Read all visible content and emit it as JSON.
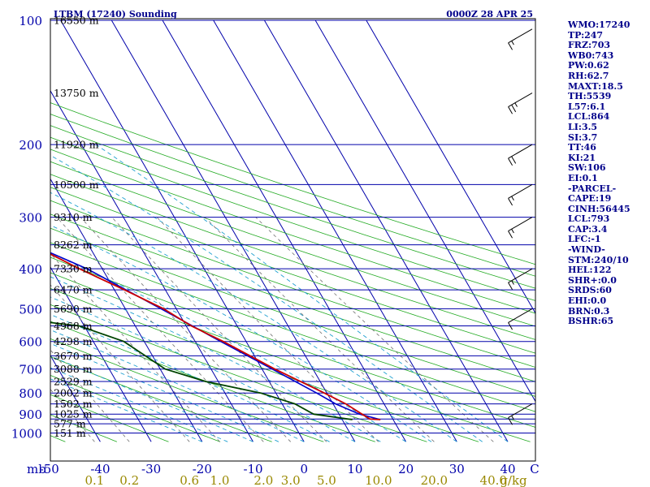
{
  "header": {
    "station": "LTBM (17240) Sounding",
    "time": "0000Z 28 APR 25"
  },
  "colors": {
    "frame": "#000000",
    "isobar": "#0000aa",
    "isotherm": "#0000aa",
    "dry_adiabat": "#22aa22",
    "moist_adiabat": "#20a0d0",
    "mixing_ratio": "#707070",
    "temperature": "#cc0000",
    "dewpoint": "#004400",
    "parcel": "#0000cc",
    "text": "#00008b",
    "mixing_label": "#998800"
  },
  "chart_data": {
    "type": "skew-t log-p",
    "pressure_axis_label": "mb",
    "pressure_ticks": [
      "100",
      "200",
      "300",
      "400",
      "500",
      "600",
      "700",
      "800",
      "900",
      "1000"
    ],
    "pressure_levels": [
      100,
      200,
      250,
      300,
      350,
      400,
      450,
      500,
      550,
      600,
      650,
      700,
      750,
      800,
      850,
      900,
      925,
      950,
      1000
    ],
    "height_labels": [
      {
        "p": 100,
        "text": "16550 m"
      },
      {
        "p": 150,
        "text": "13750 m"
      },
      {
        "p": 200,
        "text": "11920 m"
      },
      {
        "p": 250,
        "text": "10500 m"
      },
      {
        "p": 300,
        "text": "9310 m"
      },
      {
        "p": 350,
        "text": "8262 m"
      },
      {
        "p": 400,
        "text": "7330 m"
      },
      {
        "p": 450,
        "text": "6470 m"
      },
      {
        "p": 500,
        "text": "5690 m"
      },
      {
        "p": 550,
        "text": "4968 m"
      },
      {
        "p": 600,
        "text": "4298 m"
      },
      {
        "p": 650,
        "text": "3670 m"
      },
      {
        "p": 700,
        "text": "3088 m"
      },
      {
        "p": 750,
        "text": "2529 m"
      },
      {
        "p": 800,
        "text": "2002 m"
      },
      {
        "p": 850,
        "text": "1502 m"
      },
      {
        "p": 900,
        "text": "1025 m"
      },
      {
        "p": 950,
        "text": "577 m"
      },
      {
        "p": 1000,
        "text": "151 m"
      }
    ],
    "temperature_ticks": [
      "-50",
      "-40",
      "-30",
      "-20",
      "-10",
      "0",
      "10",
      "20",
      "30",
      "40"
    ],
    "temperature_values": [
      -50,
      -40,
      -30,
      -20,
      -10,
      0,
      10,
      20,
      30,
      40
    ],
    "mixing_ratio_labels": [
      "0.1",
      "0.2",
      "0.6",
      "1.0",
      "2.0",
      "3.0",
      "5.0",
      "10.0",
      "20.0",
      "40.0"
    ],
    "mixing_ratio_values": [
      0.1,
      0.2,
      0.6,
      1.0,
      2.0,
      3.0,
      5.0,
      10.0,
      20.0,
      40.0
    ],
    "mixing_ratio_unit": "g/kg",
    "wind_unit": "C",
    "temperature_profile": [
      {
        "p": 928,
        "t": 17.5
      },
      {
        "p": 925,
        "t": 15.5
      },
      {
        "p": 900,
        "t": 14.5
      },
      {
        "p": 850,
        "t": 12.5
      },
      {
        "p": 800,
        "t": 9.5
      },
      {
        "p": 700,
        "t": 2.5
      },
      {
        "p": 600,
        "t": -4.5
      },
      {
        "p": 550,
        "t": -9.0
      },
      {
        "p": 500,
        "t": -12.5
      },
      {
        "p": 450,
        "t": -18.0
      },
      {
        "p": 400,
        "t": -24.5
      },
      {
        "p": 350,
        "t": -31.0
      },
      {
        "p": 300,
        "t": -38.0
      },
      {
        "p": 250,
        "t": -47.0
      },
      {
        "p": 230,
        "t": -48.0
      },
      {
        "p": 200,
        "t": -50.0
      },
      {
        "p": 150,
        "t": -56.0
      },
      {
        "p": 135,
        "t": -55.5
      },
      {
        "p": 125,
        "t": -57.0
      },
      {
        "p": 100,
        "t": -63.0
      }
    ],
    "dewpoint_profile": [
      {
        "p": 928,
        "t": 12.0
      },
      {
        "p": 900,
        "t": 5.0
      },
      {
        "p": 850,
        "t": 2.5
      },
      {
        "p": 800,
        "t": -3.0
      },
      {
        "p": 750,
        "t": -12.5
      },
      {
        "p": 700,
        "t": -19.0
      },
      {
        "p": 600,
        "t": -24.0
      },
      {
        "p": 550,
        "t": -31.0
      },
      {
        "p": 520,
        "t": -47.0
      },
      {
        "p": 500,
        "t": -55.5
      },
      {
        "p": 450,
        "t": -47.0
      },
      {
        "p": 420,
        "t": -44.5
      },
      {
        "p": 400,
        "t": -40.5
      },
      {
        "p": 350,
        "t": -42.0
      },
      {
        "p": 300,
        "t": -47.5
      },
      {
        "p": 250,
        "t": -56.0
      },
      {
        "p": 230,
        "t": -54.0
      },
      {
        "p": 200,
        "t": -55.0
      }
    ],
    "parcel_profile": [
      {
        "p": 928,
        "t": 17.5
      },
      {
        "p": 900,
        "t": 14.0
      },
      {
        "p": 850,
        "t": 10.5
      },
      {
        "p": 800,
        "t": 8.0
      },
      {
        "p": 700,
        "t": 2.0
      },
      {
        "p": 600,
        "t": -5.0
      },
      {
        "p": 500,
        "t": -13.0
      },
      {
        "p": 400,
        "t": -23.0
      },
      {
        "p": 350,
        "t": -31.0
      },
      {
        "p": 300,
        "t": -40.0
      },
      {
        "p": 250,
        "t": -50.0
      },
      {
        "p": 200,
        "t": -60.0
      },
      {
        "p": 150,
        "t": -74.0
      },
      {
        "p": 100,
        "t": -95.0
      }
    ],
    "wind_barbs": [
      {
        "p": 105,
        "dir": 240,
        "speed": 15
      },
      {
        "p": 150,
        "dir": 240,
        "speed": 25
      },
      {
        "p": 200,
        "dir": 240,
        "speed": 20
      },
      {
        "p": 250,
        "dir": 240,
        "speed": 15
      },
      {
        "p": 300,
        "dir": 240,
        "speed": 15
      },
      {
        "p": 400,
        "dir": 240,
        "speed": 15
      },
      {
        "p": 500,
        "dir": 240,
        "speed": 10
      },
      {
        "p": 850,
        "dir": 240,
        "speed": 15
      }
    ]
  },
  "indices": [
    "WMO:17240",
    "TP:247",
    "FRZ:703",
    "WB0:743",
    "PW:0.62",
    "RH:62.7",
    "MAXT:18.5",
    "TH:5539",
    "L57:6.1",
    "LCL:864",
    "LI:3.5",
    "SI:3.7",
    "TT:46",
    "KI:21",
    "SW:106",
    "EI:0.1",
    "-PARCEL-",
    "CAPE:19",
    "CINH:56445",
    "LCL:793",
    "CAP:3.4",
    "LFC:-1",
    "-WIND-",
    "STM:240/10",
    "HEL:122",
    "SHR+:0.0",
    "SRDS:60",
    "EHI:0.0",
    "BRN:0.3",
    "BSHR:65"
  ]
}
